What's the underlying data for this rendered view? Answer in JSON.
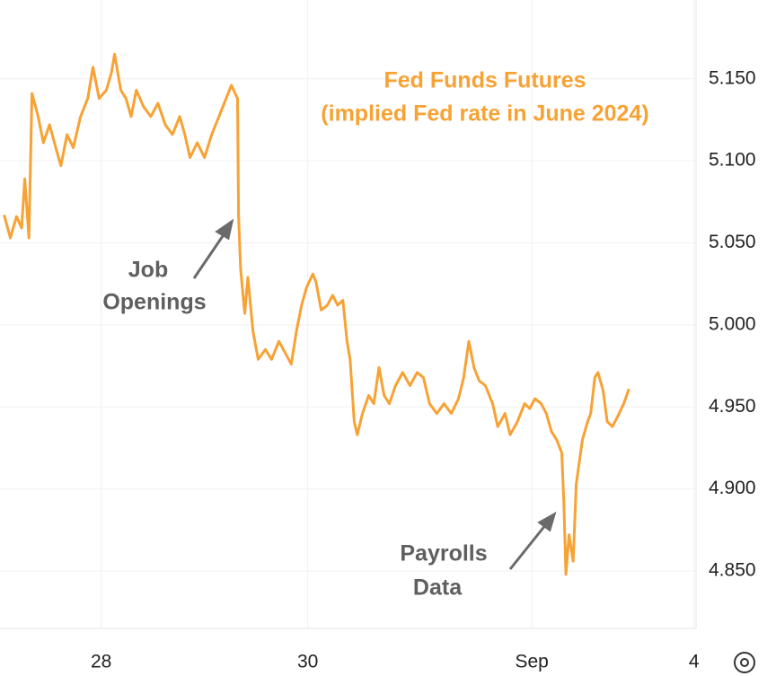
{
  "chart_data": {
    "type": "line",
    "title": "Fed Funds Futures",
    "subtitle": "(implied Fed rate in June 2024)",
    "annotations": [
      {
        "lines": [
          "Job",
          "Openings"
        ]
      },
      {
        "lines": [
          "Payrolls",
          "Data"
        ]
      }
    ],
    "color": "#f7a234",
    "grid": true,
    "xlim": [
      27.02,
      33.76
    ],
    "ylim": [
      4.815,
      5.198
    ],
    "xticks": [
      28,
      30,
      {
        "value": 32.17,
        "label": "Sep"
      },
      {
        "value": 33.74,
        "label": "4"
      }
    ],
    "yticks": [
      {
        "value": 4.85,
        "label": "4.850"
      },
      {
        "value": 4.9,
        "label": "4.900"
      },
      {
        "value": 4.95,
        "label": "4.950"
      },
      {
        "value": 5.0,
        "label": "5.000"
      },
      {
        "value": 5.05,
        "label": "5.050"
      },
      {
        "value": 5.1,
        "label": "5.100"
      },
      {
        "value": 5.15,
        "label": "5.150"
      }
    ],
    "x": [
      27.06,
      27.12,
      27.18,
      27.23,
      27.26,
      27.3,
      27.33,
      27.39,
      27.44,
      27.5,
      27.56,
      27.61,
      27.67,
      27.73,
      27.8,
      27.87,
      27.92,
      27.98,
      28.05,
      28.1,
      28.13,
      28.19,
      28.24,
      28.29,
      28.34,
      28.41,
      28.48,
      28.55,
      28.62,
      28.69,
      28.76,
      28.81,
      28.86,
      28.93,
      29.0,
      29.07,
      29.14,
      29.21,
      29.26,
      29.32,
      29.33,
      29.35,
      29.39,
      29.42,
      29.47,
      29.52,
      29.59,
      29.65,
      29.72,
      29.79,
      29.84,
      29.89,
      29.94,
      29.99,
      30.05,
      30.08,
      30.13,
      30.19,
      30.24,
      30.29,
      30.34,
      30.38,
      30.41,
      30.45,
      30.48,
      30.53,
      30.59,
      30.64,
      30.69,
      30.74,
      30.79,
      30.85,
      30.92,
      30.99,
      31.06,
      31.12,
      31.18,
      31.25,
      31.32,
      31.39,
      31.46,
      31.51,
      31.56,
      31.61,
      31.66,
      31.72,
      31.79,
      31.84,
      31.91,
      31.96,
      32.03,
      32.1,
      32.15,
      32.2,
      32.26,
      32.31,
      32.36,
      32.41,
      32.46,
      32.48,
      32.5,
      32.53,
      32.57,
      32.6,
      32.66,
      32.71,
      32.74,
      32.78,
      32.81,
      32.86,
      32.9,
      32.95,
      33.0,
      33.06,
      33.11
    ],
    "values": [
      5.067,
      5.053,
      5.066,
      5.059,
      5.089,
      5.053,
      5.141,
      5.127,
      5.111,
      5.122,
      5.108,
      5.097,
      5.116,
      5.108,
      5.127,
      5.138,
      5.157,
      5.138,
      5.143,
      5.154,
      5.165,
      5.143,
      5.138,
      5.127,
      5.143,
      5.133,
      5.127,
      5.135,
      5.122,
      5.116,
      5.127,
      5.116,
      5.102,
      5.111,
      5.102,
      5.116,
      5.127,
      5.138,
      5.146,
      5.138,
      5.067,
      5.034,
      5.007,
      5.029,
      4.996,
      4.979,
      4.985,
      4.979,
      4.99,
      4.982,
      4.976,
      4.996,
      5.012,
      5.023,
      5.031,
      5.026,
      5.009,
      5.012,
      5.018,
      5.012,
      5.015,
      4.99,
      4.979,
      4.941,
      4.933,
      4.946,
      4.957,
      4.952,
      4.974,
      4.957,
      4.952,
      4.963,
      4.971,
      4.963,
      4.971,
      4.968,
      4.952,
      4.946,
      4.952,
      4.946,
      4.955,
      4.968,
      4.99,
      4.974,
      4.966,
      4.963,
      4.952,
      4.938,
      4.946,
      4.933,
      4.941,
      4.952,
      4.949,
      4.955,
      4.952,
      4.946,
      4.935,
      4.93,
      4.922,
      4.892,
      4.848,
      4.872,
      4.856,
      4.903,
      4.93,
      4.941,
      4.946,
      4.968,
      4.971,
      4.96,
      4.941,
      4.938,
      4.944,
      4.952,
      4.961
    ]
  }
}
